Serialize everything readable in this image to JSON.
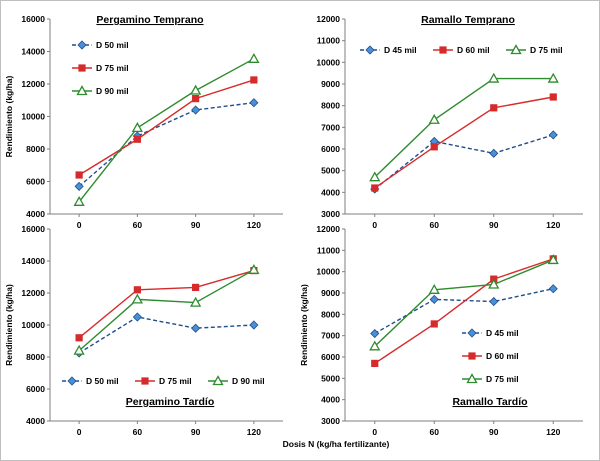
{
  "figure": {
    "xlabel_shared": "Dosis N (kg/ha fertilizante)"
  },
  "chart_data": [
    {
      "type": "line",
      "title": "Pergamino Temprano",
      "ylabel": "Rendimiento (kg/ha)",
      "xlabel": "",
      "categories": [
        "0",
        "60",
        "90",
        "120"
      ],
      "ylim": [
        4000,
        16000
      ],
      "yticks": [
        "4000",
        "6000",
        "8000",
        "10000",
        "12000",
        "14000",
        "16000"
      ],
      "title_position": "top-left",
      "legend_position": "top-left",
      "series": [
        {
          "name": "D 50 mil",
          "values": [
            5700,
            8800,
            10400,
            10850
          ],
          "color": "#1f4e8c",
          "marker_color": "#4a90d9",
          "marker": "diamond",
          "dash": "dashed"
        },
        {
          "name": "D 75 mil",
          "values": [
            6400,
            8600,
            11100,
            12250
          ],
          "color": "#d62b2b",
          "marker_color": "#d62b2b",
          "marker": "square",
          "dash": "solid"
        },
        {
          "name": "D 90 mil",
          "values": [
            4750,
            9300,
            11600,
            13550
          ],
          "color": "#2e8b2e",
          "marker_color": "#2e8b2e",
          "marker": "triangle",
          "dash": "solid"
        }
      ]
    },
    {
      "type": "line",
      "title": "Ramallo Temprano",
      "ylabel": "",
      "xlabel": "",
      "categories": [
        "0",
        "60",
        "90",
        "120"
      ],
      "ylim": [
        3000,
        12000
      ],
      "yticks": [
        "3000",
        "4000",
        "5000",
        "6000",
        "7000",
        "8000",
        "9000",
        "10000",
        "11000",
        "12000"
      ],
      "title_position": "top",
      "legend_position": "top",
      "series": [
        {
          "name": "D 45 mil",
          "values": [
            4150,
            6350,
            5800,
            6650
          ],
          "color": "#1f4e8c",
          "marker_color": "#4a90d9",
          "marker": "diamond",
          "dash": "dashed"
        },
        {
          "name": "D 60 mil",
          "values": [
            4200,
            6100,
            7900,
            8400
          ],
          "color": "#d62b2b",
          "marker_color": "#d62b2b",
          "marker": "square",
          "dash": "solid"
        },
        {
          "name": "D 75 mil",
          "values": [
            4700,
            7350,
            9250,
            9250
          ],
          "color": "#2e8b2e",
          "marker_color": "#2e8b2e",
          "marker": "triangle",
          "dash": "solid"
        }
      ]
    },
    {
      "type": "line",
      "title": "Pergamino Tardío",
      "ylabel": "Rendimiento (kg/ha)",
      "xlabel": "",
      "categories": [
        "0",
        "60",
        "90",
        "120"
      ],
      "ylim": [
        4000,
        16000
      ],
      "yticks": [
        "4000",
        "6000",
        "8000",
        "10000",
        "12000",
        "14000",
        "16000"
      ],
      "title_position": "bottom",
      "legend_position": "bottom",
      "series": [
        {
          "name": "D 50 mil",
          "values": [
            8250,
            10500,
            9800,
            10000
          ],
          "color": "#1f4e8c",
          "marker_color": "#4a90d9",
          "marker": "diamond",
          "dash": "dashed"
        },
        {
          "name": "D 75 mil",
          "values": [
            9200,
            12200,
            12350,
            13400
          ],
          "color": "#d62b2b",
          "marker_color": "#d62b2b",
          "marker": "square",
          "dash": "solid"
        },
        {
          "name": "D 90 mil",
          "values": [
            8400,
            11600,
            11400,
            13450
          ],
          "color": "#2e8b2e",
          "marker_color": "#2e8b2e",
          "marker": "triangle",
          "dash": "solid"
        }
      ]
    },
    {
      "type": "line",
      "title": "Ramallo Tardío",
      "ylabel": "Rendimiento (kg/ha)",
      "xlabel": "",
      "categories": [
        "0",
        "60",
        "90",
        "120"
      ],
      "ylim": [
        3000,
        12000
      ],
      "yticks": [
        "3000",
        "4000",
        "5000",
        "6000",
        "7000",
        "8000",
        "9000",
        "10000",
        "11000",
        "12000"
      ],
      "title_position": "bottom-right",
      "legend_position": "bottom-right",
      "series": [
        {
          "name": "D 45 mil",
          "values": [
            7100,
            8700,
            8600,
            9200
          ],
          "color": "#1f4e8c",
          "marker_color": "#4a90d9",
          "marker": "diamond",
          "dash": "dashed"
        },
        {
          "name": "D 60 mil",
          "values": [
            5700,
            7550,
            9650,
            10600
          ],
          "color": "#d62b2b",
          "marker_color": "#d62b2b",
          "marker": "square",
          "dash": "solid"
        },
        {
          "name": "D 75 mil",
          "values": [
            6500,
            9150,
            9400,
            10550
          ],
          "color": "#2e8b2e",
          "marker_color": "#2e8b2e",
          "marker": "triangle",
          "dash": "solid"
        }
      ]
    }
  ]
}
